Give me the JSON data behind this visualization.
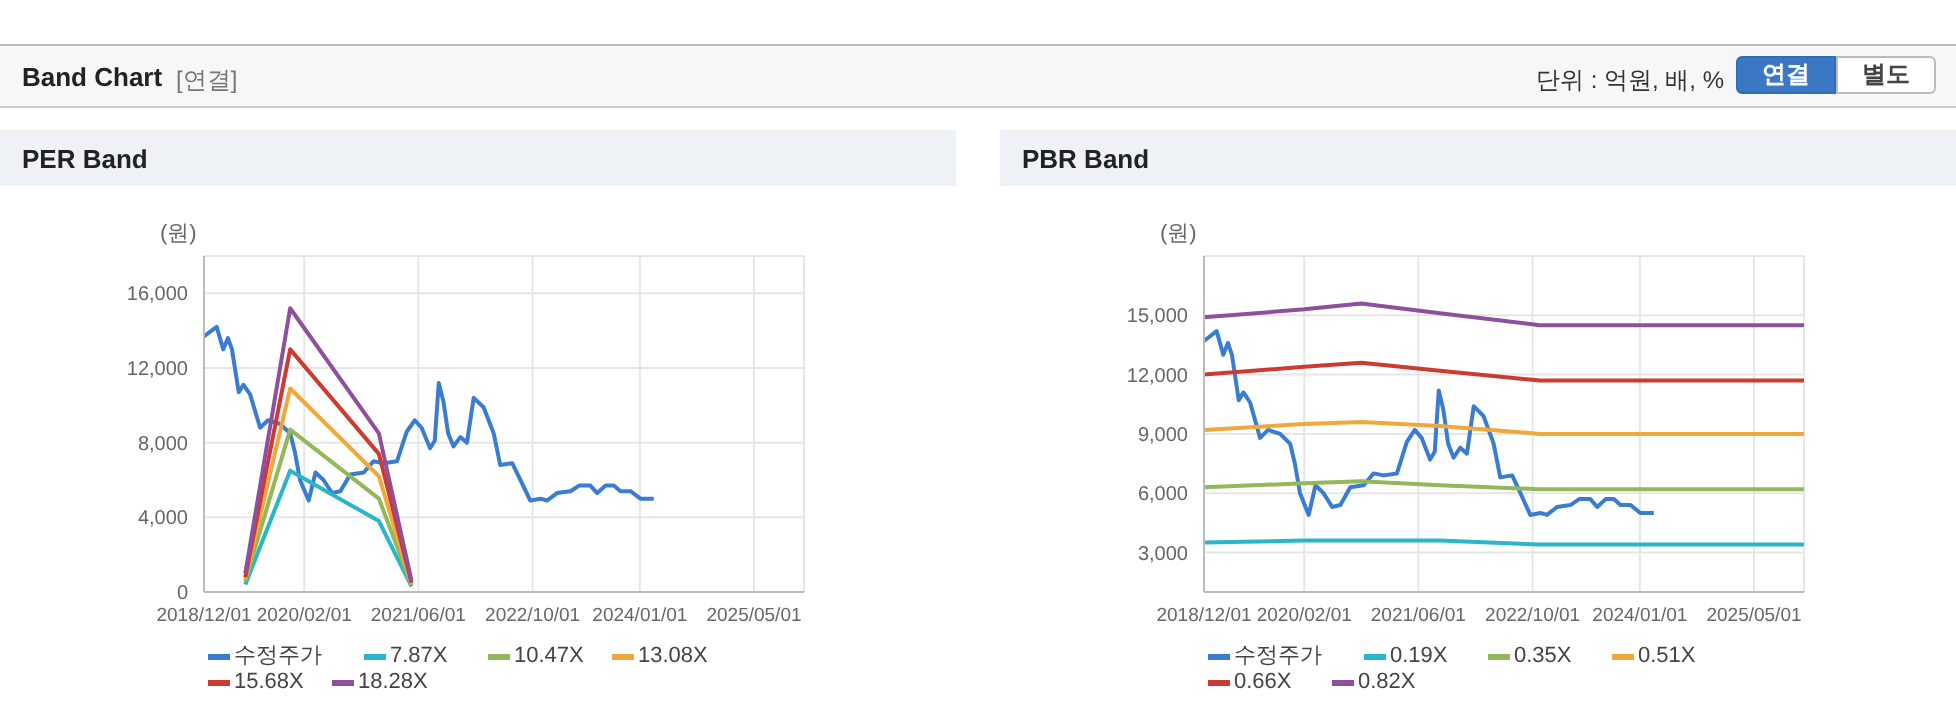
{
  "chart_data": [
    {
      "type": "other",
      "title": "Band Chart",
      "subtitle": "[연결]",
      "annotations": [
        "단위 : 억원, 배, %",
        "연결",
        "별도"
      ]
    },
    {
      "type": "line",
      "title": "PER Band",
      "ylabel": "(원)",
      "xlim": [
        "2018-12-01",
        "2025-11-30"
      ],
      "xticks": [
        {
          "value": "2018-12-01",
          "label": "2018/12/01"
        },
        {
          "value": "2020-02-01",
          "label": "2020/02/01"
        },
        {
          "value": "2021-06-01",
          "label": "2021/06/01"
        },
        {
          "value": "2022-10-01",
          "label": "2022/10/01"
        },
        {
          "value": "2024-01-01",
          "label": "2024/01/01"
        },
        {
          "value": "2025-05-01",
          "label": "2025/05/01"
        }
      ],
      "ylim": [
        0,
        18000
      ],
      "yticks": [
        0,
        {
          "value": 4000,
          "label": "4,000"
        },
        {
          "value": 8000,
          "label": "8,000"
        },
        {
          "value": 12000,
          "label": "12,000"
        },
        {
          "value": 16000,
          "label": "16,000"
        }
      ],
      "grid": true,
      "legend": "bottom",
      "line_style": "solid",
      "series": [
        {
          "name": "수정주가",
          "color": "#3a7dd0",
          "x": [
            "2018-12-01",
            "2019-01-24",
            "2019-02-21",
            "2019-03-13",
            "2019-03-30",
            "2019-04-28",
            "2019-05-18",
            "2019-06-15",
            "2019-07-28",
            "2019-08-31",
            "2019-10-21",
            "2019-12-03",
            "2019-12-23",
            "2020-01-14",
            "2020-02-20",
            "2020-03-20",
            "2020-04-23",
            "2020-05-30",
            "2020-07-04",
            "2020-08-15",
            "2020-10-11",
            "2020-11-22",
            "2021-01-04",
            "2021-03-02",
            "2021-04-13",
            "2021-05-17",
            "2021-06-15",
            "2021-07-21",
            "2021-08-10",
            "2021-08-27",
            "2021-09-16",
            "2021-10-06",
            "2021-10-29",
            "2021-11-27",
            "2021-12-25",
            "2022-01-23",
            "2022-03-06",
            "2022-04-18",
            "2022-05-16",
            "2022-07-06",
            "2022-08-10",
            "2022-09-21",
            "2022-11-03",
            "2022-12-01",
            "2023-01-13",
            "2023-03-11",
            "2023-04-17",
            "2023-06-04",
            "2023-07-03",
            "2023-08-08",
            "2023-09-12",
            "2023-10-10",
            "2023-11-22",
            "2024-01-03",
            "2024-02-29"
          ],
          "values": [
            13700,
            14200,
            13000,
            13600,
            13000,
            10700,
            11100,
            10600,
            8800,
            9200,
            9000,
            8500,
            7500,
            6000,
            4900,
            6400,
            6000,
            5300,
            5400,
            6300,
            6400,
            7000,
            6900,
            7000,
            8600,
            9200,
            8800,
            7700,
            8100,
            11200,
            10200,
            8500,
            7800,
            8300,
            8000,
            10400,
            9900,
            8500,
            6800,
            6900,
            6000,
            4900,
            5000,
            4900,
            5300,
            5400,
            5700,
            5700,
            5300,
            5700,
            5700,
            5400,
            5400,
            5000,
            5000
          ]
        },
        {
          "name": "7.87X",
          "color": "#2bb5c8",
          "x": [
            "2019-05-26",
            "2019-12-03",
            "2020-12-15",
            "2021-05-03"
          ],
          "values": [
            400,
            6500,
            3800,
            300
          ]
        },
        {
          "name": "10.47X",
          "color": "#92b85a",
          "x": [
            "2019-05-26",
            "2019-12-03",
            "2020-12-15",
            "2021-05-03"
          ],
          "values": [
            600,
            8700,
            5000,
            400
          ]
        },
        {
          "name": "13.08X",
          "color": "#f0a83c",
          "x": [
            "2019-05-26",
            "2019-12-03",
            "2020-12-15",
            "2021-05-03"
          ],
          "values": [
            700,
            10900,
            6200,
            400
          ]
        },
        {
          "name": "15.68X",
          "color": "#cc3a30",
          "x": [
            "2019-05-26",
            "2019-12-03",
            "2020-12-15",
            "2021-05-03"
          ],
          "values": [
            800,
            13000,
            7400,
            500
          ]
        },
        {
          "name": "18.28X",
          "color": "#8e4f9c",
          "x": [
            "2019-05-26",
            "2019-12-03",
            "2020-12-15",
            "2021-05-03"
          ],
          "values": [
            1000,
            15200,
            8500,
            600
          ]
        }
      ]
    },
    {
      "type": "line",
      "title": "PBR Band",
      "ylabel": "(원)",
      "xlim": [
        "2018-12-01",
        "2025-11-30"
      ],
      "xticks": [
        {
          "value": "2018-12-01",
          "label": "2018/12/01"
        },
        {
          "value": "2020-02-01",
          "label": "2020/02/01"
        },
        {
          "value": "2021-06-01",
          "label": "2021/06/01"
        },
        {
          "value": "2022-10-01",
          "label": "2022/10/01"
        },
        {
          "value": "2024-01-01",
          "label": "2024/01/01"
        },
        {
          "value": "2025-05-01",
          "label": "2025/05/01"
        }
      ],
      "ylim": [
        1000,
        18000
      ],
      "yticks": [
        {
          "value": 3000,
          "label": "3,000"
        },
        {
          "value": 6000,
          "label": "6,000"
        },
        {
          "value": 9000,
          "label": "9,000"
        },
        {
          "value": 12000,
          "label": "12,000"
        },
        {
          "value": 15000,
          "label": "15,000"
        }
      ],
      "grid": true,
      "legend": "bottom",
      "line_style": "solid",
      "series": [
        {
          "name": "수정주가",
          "color": "#3a7dd0",
          "x": [
            "2018-12-01",
            "2019-01-24",
            "2019-02-21",
            "2019-03-13",
            "2019-03-30",
            "2019-04-28",
            "2019-05-18",
            "2019-06-15",
            "2019-07-28",
            "2019-08-31",
            "2019-10-21",
            "2019-12-03",
            "2019-12-23",
            "2020-01-14",
            "2020-02-20",
            "2020-03-20",
            "2020-04-23",
            "2020-05-30",
            "2020-07-04",
            "2020-08-15",
            "2020-10-11",
            "2020-11-22",
            "2021-01-04",
            "2021-03-02",
            "2021-04-13",
            "2021-05-17",
            "2021-06-15",
            "2021-07-21",
            "2021-08-10",
            "2021-08-27",
            "2021-09-16",
            "2021-10-06",
            "2021-10-29",
            "2021-11-27",
            "2021-12-25",
            "2022-01-23",
            "2022-03-06",
            "2022-04-18",
            "2022-05-16",
            "2022-07-06",
            "2022-08-10",
            "2022-09-21",
            "2022-11-03",
            "2022-12-01",
            "2023-01-13",
            "2023-03-11",
            "2023-04-17",
            "2023-06-04",
            "2023-07-03",
            "2023-08-08",
            "2023-09-12",
            "2023-10-10",
            "2023-11-22",
            "2024-01-03",
            "2024-02-29"
          ],
          "values": [
            13700,
            14200,
            13000,
            13600,
            13000,
            10700,
            11100,
            10600,
            8800,
            9200,
            9000,
            8500,
            7500,
            6000,
            4900,
            6400,
            6000,
            5300,
            5400,
            6300,
            6400,
            7000,
            6900,
            7000,
            8600,
            9200,
            8800,
            7700,
            8100,
            11200,
            10200,
            8500,
            7800,
            8300,
            8000,
            10400,
            9900,
            8500,
            6800,
            6900,
            6000,
            4900,
            5000,
            4900,
            5300,
            5400,
            5700,
            5700,
            5300,
            5700,
            5700,
            5400,
            5400,
            5000,
            5000
          ]
        },
        {
          "name": "0.19X",
          "color": "#2bb5c8",
          "x": [
            "2018-12-01",
            "2020-02-01",
            "2020-10-01",
            "2021-09-01",
            "2022-11-01",
            "2025-11-30"
          ],
          "values": [
            3500,
            3600,
            3600,
            3600,
            3400,
            3400
          ]
        },
        {
          "name": "0.35X",
          "color": "#92b85a",
          "x": [
            "2018-12-01",
            "2020-02-01",
            "2020-10-01",
            "2021-09-01",
            "2022-11-01",
            "2025-11-30"
          ],
          "values": [
            6300,
            6500,
            6600,
            6400,
            6200,
            6200
          ]
        },
        {
          "name": "0.51X",
          "color": "#f0a83c",
          "x": [
            "2018-12-01",
            "2020-02-01",
            "2020-10-01",
            "2021-09-01",
            "2022-11-01",
            "2025-11-30"
          ],
          "values": [
            9200,
            9500,
            9600,
            9400,
            9000,
            9000
          ]
        },
        {
          "name": "0.66X",
          "color": "#cc3a30",
          "x": [
            "2018-12-01",
            "2020-02-01",
            "2020-10-01",
            "2021-09-01",
            "2022-11-01",
            "2025-11-30"
          ],
          "values": [
            12000,
            12400,
            12600,
            12200,
            11700,
            11700
          ]
        },
        {
          "name": "0.82X",
          "color": "#8e4f9c",
          "x": [
            "2018-12-01",
            "2020-02-01",
            "2020-10-01",
            "2021-09-01",
            "2022-11-01",
            "2025-11-30"
          ],
          "values": [
            14900,
            15300,
            15600,
            15100,
            14500,
            14500
          ]
        }
      ]
    }
  ]
}
